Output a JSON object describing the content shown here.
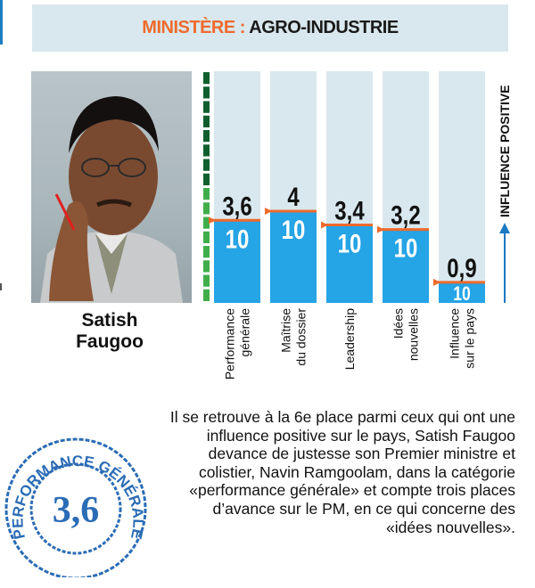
{
  "header": {
    "label": "MINISTÈRE :",
    "value": "AGRO-INDUSTRIE"
  },
  "person": {
    "first_name": "Satish",
    "last_name": "Faugoo"
  },
  "chart_data": {
    "type": "bar",
    "categories": [
      [
        "Performance",
        "générale"
      ],
      [
        "Maîtrise",
        "du dossier"
      ],
      [
        "Leadership"
      ],
      [
        "Idées",
        "nouvelles"
      ],
      [
        "Influence",
        "sur le pays"
      ]
    ],
    "values": [
      3.6,
      4,
      3.4,
      3.2,
      0.9
    ],
    "value_labels": [
      "3,6",
      "4",
      "3,4",
      "3,2",
      "0,9"
    ],
    "max_label": "10",
    "ylim": [
      0,
      10
    ],
    "axis_label": "INFLUENCE POSITIVE",
    "colors": {
      "bar": "#25a4e6",
      "marker": "#ee6a2c",
      "arrow": "#1b78c2",
      "scale_dark": "#0f5f2e",
      "scale_light": "#3fae4a"
    }
  },
  "description": {
    "lines": [
      "Il se retrouve à la 6e place parmi ceux qui ont une",
      "influence positive sur le pays, Satish Faugoo",
      "devance de justesse son Premier ministre et",
      "colistier, Navin Ramgoolam, dans la catégorie",
      "«performance générale» et compte trois places",
      "d’avance sur le PM, en ce qui concerne des",
      "«idées nouvelles»."
    ]
  },
  "stamp": {
    "ring_text": "PERFORMANCE GÉNÉRALE",
    "value": "3,6"
  }
}
